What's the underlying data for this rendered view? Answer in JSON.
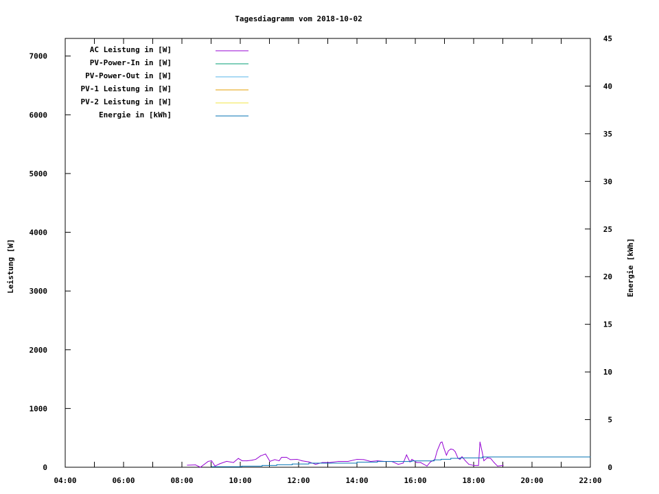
{
  "chart_data": {
    "type": "line",
    "title": "Tagesdiagramm vom 2018-10-02",
    "xlabel": "",
    "ylabel": "Leistung [W]",
    "y2label": "Energie [kWh]",
    "xlim": [
      "04:00",
      "22:00"
    ],
    "ylim": [
      0,
      7300
    ],
    "y2lim": [
      0,
      45
    ],
    "x_ticks": [
      "04:00",
      "06:00",
      "08:00",
      "10:00",
      "12:00",
      "14:00",
      "16:00",
      "18:00",
      "20:00",
      "22:00"
    ],
    "y_ticks": [
      "0",
      "1000",
      "2000",
      "3000",
      "4000",
      "5000",
      "6000",
      "7000"
    ],
    "y2_ticks": [
      "0",
      "5",
      "10",
      "15",
      "20",
      "25",
      "30",
      "35",
      "40",
      "45"
    ],
    "grid": false,
    "legend_placement": "top-left",
    "series": [
      {
        "name": "AC Leistung in [W]",
        "color": "#9400d3",
        "axis": "left",
        "points": [
          [
            "08:11",
            35
          ],
          [
            "08:28",
            40
          ],
          [
            "08:38",
            0
          ],
          [
            "08:54",
            100
          ],
          [
            "09:01",
            110
          ],
          [
            "09:08",
            20
          ],
          [
            "09:18",
            60
          ],
          [
            "09:32",
            100
          ],
          [
            "09:46",
            80
          ],
          [
            "09:56",
            150
          ],
          [
            "10:04",
            110
          ],
          [
            "10:14",
            110
          ],
          [
            "10:24",
            120
          ],
          [
            "10:32",
            135
          ],
          [
            "10:42",
            195
          ],
          [
            "10:52",
            225
          ],
          [
            "11:01",
            100
          ],
          [
            "11:11",
            130
          ],
          [
            "11:20",
            110
          ],
          [
            "11:25",
            170
          ],
          [
            "11:35",
            170
          ],
          [
            "11:43",
            130
          ],
          [
            "11:57",
            135
          ],
          [
            "12:07",
            110
          ],
          [
            "12:21",
            90
          ],
          [
            "12:35",
            50
          ],
          [
            "12:49",
            80
          ],
          [
            "13:04",
            80
          ],
          [
            "13:22",
            100
          ],
          [
            "13:42",
            100
          ],
          [
            "14:00",
            135
          ],
          [
            "14:14",
            130
          ],
          [
            "14:28",
            100
          ],
          [
            "14:42",
            110
          ],
          [
            "14:56",
            100
          ],
          [
            "15:11",
            100
          ],
          [
            "15:25",
            50
          ],
          [
            "15:35",
            70
          ],
          [
            "15:42",
            210
          ],
          [
            "15:49",
            90
          ],
          [
            "15:53",
            135
          ],
          [
            "16:03",
            80
          ],
          [
            "16:11",
            80
          ],
          [
            "16:24",
            20
          ],
          [
            "16:31",
            90
          ],
          [
            "16:40",
            130
          ],
          [
            "16:45",
            280
          ],
          [
            "16:52",
            420
          ],
          [
            "16:55",
            430
          ],
          [
            "16:59",
            320
          ],
          [
            "17:04",
            205
          ],
          [
            "17:08",
            280
          ],
          [
            "17:13",
            310
          ],
          [
            "17:18",
            300
          ],
          [
            "17:22",
            265
          ],
          [
            "17:28",
            150
          ],
          [
            "17:32",
            135
          ],
          [
            "17:36",
            180
          ],
          [
            "17:43",
            110
          ],
          [
            "17:50",
            50
          ],
          [
            "18:00",
            30
          ],
          [
            "18:10",
            30
          ],
          [
            "18:13",
            430
          ],
          [
            "18:17",
            280
          ],
          [
            "18:21",
            110
          ],
          [
            "18:28",
            160
          ],
          [
            "18:35",
            150
          ],
          [
            "18:42",
            80
          ],
          [
            "18:49",
            20
          ],
          [
            "19:01",
            30
          ]
        ]
      },
      {
        "name": "PV-Power-In in [W]",
        "color": "#009e73",
        "axis": "left",
        "points": []
      },
      {
        "name": "PV-Power-Out in [W]",
        "color": "#56b4e9",
        "axis": "left",
        "points": []
      },
      {
        "name": "PV-1 Leistung in [W]",
        "color": "#e69f00",
        "axis": "left",
        "points": []
      },
      {
        "name": "PV-2 Leistung in [W]",
        "color": "#f0e442",
        "axis": "left",
        "points": []
      },
      {
        "name": "Energie in [kWh]",
        "color": "#0072b2",
        "axis": "right",
        "step": true,
        "points": [
          [
            "09:01",
            0.05
          ],
          [
            "10:03",
            0.12
          ],
          [
            "10:45",
            0.19
          ],
          [
            "11:15",
            0.26
          ],
          [
            "11:47",
            0.34
          ],
          [
            "12:21",
            0.43
          ],
          [
            "14:00",
            0.53
          ],
          [
            "14:42",
            0.6
          ],
          [
            "15:53",
            0.67
          ],
          [
            "16:39",
            0.77
          ],
          [
            "16:53",
            0.84
          ],
          [
            "17:13",
            0.94
          ],
          [
            "17:32",
            0.98
          ],
          [
            "18:18",
            1.08
          ],
          [
            "22:00",
            1.08
          ]
        ]
      }
    ]
  }
}
